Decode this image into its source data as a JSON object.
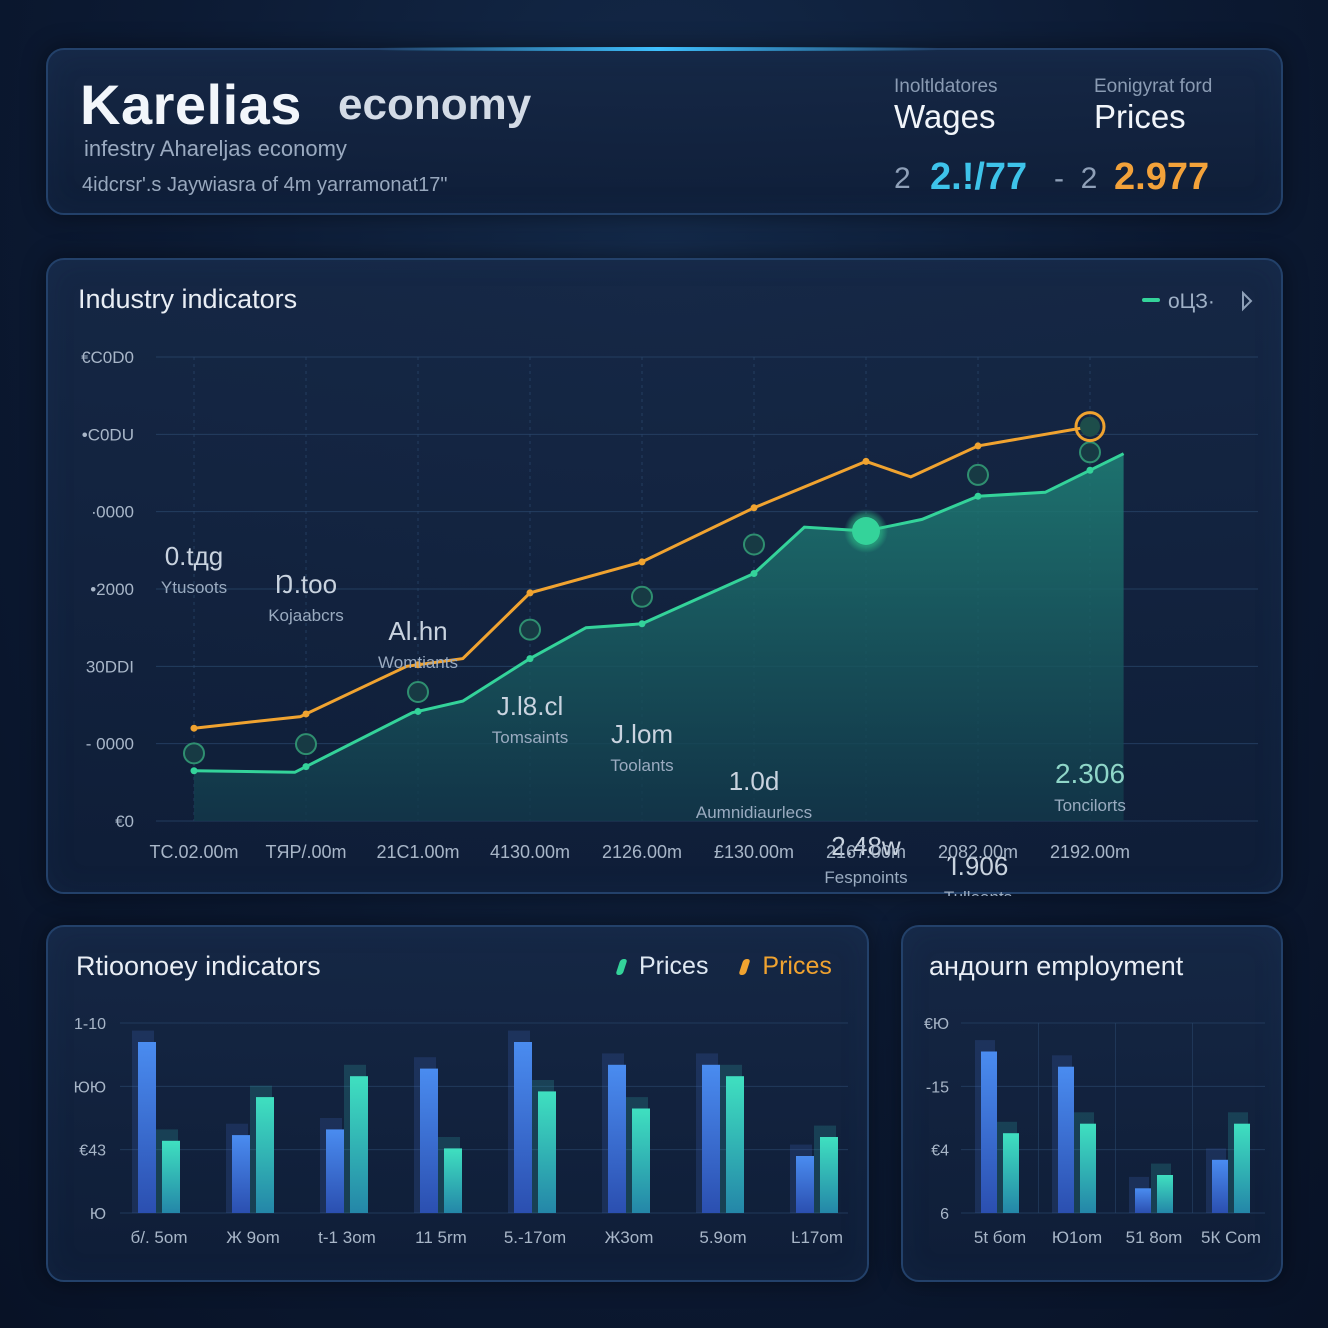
{
  "header": {
    "title_main": "Karelias",
    "title_secondary": "economy",
    "subtitle": "infestry Ahareljas economy",
    "note": "4idcrsr'.s Jaywiasra of 4m yarramonat17\"",
    "kpis": [
      {
        "small": "Inoltldatores",
        "label": "Wages",
        "prefix": "2",
        "value": "2.!/‌77",
        "color": "#3ec3ea"
      },
      {
        "small": "Eonigyrat ford",
        "label": "Prices",
        "prefix": "-  2",
        "value": "2.977",
        "color": "#f3a23a"
      }
    ]
  },
  "main_chart": {
    "title": "Industry indicators",
    "legend_text": "oЦЗ·",
    "colors": {
      "area": "#1f7a72",
      "line_green": "#34d39a",
      "line_orange": "#f0a330"
    },
    "ytick_labels": [
      "€C0D0",
      "•C0DU",
      "∙0000",
      "•2000",
      "30DDI",
      "- 0000",
      "€0"
    ],
    "xtick_labels": [
      "TC.02.00m",
      "TЯP/.00m",
      "21С1.00m",
      "4130.00m",
      "2126.00m",
      "£130.00m",
      "2167.00m",
      "2082.00m",
      "2192.00m"
    ]
  },
  "chart_data": [
    {
      "type": "line",
      "title": "Industry indicators",
      "x": [
        "TC.02.00m",
        "TЯP/.00m",
        "21С1.00m",
        "4130.00m",
        "2126.00m",
        "£130.00m",
        "2167.00m",
        "2082.00m",
        "2192.00m"
      ],
      "ylim": [
        0,
        6
      ],
      "grid": true,
      "legend_position": "top-right",
      "series": [
        {
          "name": "orange",
          "color": "#f0a330",
          "points": [
            [
              0,
              1.2
            ],
            [
              0.95,
              1.35
            ],
            [
              1.9,
              2.0
            ],
            [
              2.4,
              2.1
            ],
            [
              3.0,
              2.95
            ],
            [
              4.0,
              3.35
            ],
            [
              5.0,
              4.05
            ],
            [
              6.0,
              4.65
            ],
            [
              6.4,
              4.45
            ],
            [
              7.0,
              4.85
            ],
            [
              8.0,
              5.1
            ]
          ]
        },
        {
          "name": "green",
          "color": "#34d39a",
          "points": [
            [
              0,
              0.65
            ],
            [
              0.9,
              0.63
            ],
            [
              1.95,
              1.4
            ],
            [
              2.4,
              1.55
            ],
            [
              3.0,
              2.1
            ],
            [
              3.5,
              2.5
            ],
            [
              4.0,
              2.55
            ],
            [
              5.0,
              3.2
            ],
            [
              5.45,
              3.8
            ],
            [
              6.0,
              3.75
            ],
            [
              6.5,
              3.9
            ],
            [
              7.0,
              4.2
            ],
            [
              7.6,
              4.25
            ],
            [
              8.3,
              4.75
            ]
          ]
        }
      ],
      "annotations": [
        {
          "x": 0,
          "value": "0.tдg",
          "label": "Ytusoots"
        },
        {
          "x": 1,
          "value": "Ŋ.too",
          "label": "Kojaabcrs"
        },
        {
          "x": 2,
          "value": "Al.hn",
          "label": "Womtiants"
        },
        {
          "x": 3,
          "value": "J.l8.cl",
          "label": "Tomsaints"
        },
        {
          "x": 4,
          "value": "J.lom",
          "label": "Toolants"
        },
        {
          "x": 5,
          "value": "1.0d",
          "label": "Aumnidiaurlecs"
        },
        {
          "x": 6,
          "value": "2.48w",
          "label": "Fespnoints"
        },
        {
          "x": 7,
          "value": "Ί.906",
          "label": "Tulleants"
        },
        {
          "x": 8,
          "value": "2.306",
          "label": "Toncilorts"
        }
      ]
    },
    {
      "type": "bar",
      "title": "Rtioonoey indicators",
      "categories": [
        "б/. 5om",
        "Ж 9om",
        "t-1 3om",
        "11 5rm",
        "5.-17om",
        "Ж3om",
        "5.9om",
        "Ŀ17om"
      ],
      "ytick_labels": [
        "1-10",
        "ЮЮ",
        "€43",
        "Ю"
      ],
      "ylim": [
        0,
        1
      ],
      "series": [
        {
          "name": "Prices",
          "color": "#3a79e0",
          "values": [
            0.9,
            0.41,
            0.44,
            0.76,
            0.9,
            0.78,
            0.78,
            0.3
          ]
        },
        {
          "name": "Prices",
          "color": "#34d0b0",
          "values": [
            0.38,
            0.61,
            0.72,
            0.34,
            0.64,
            0.55,
            0.72,
            0.4
          ]
        }
      ]
    },
    {
      "type": "bar",
      "title": "андоurn employment",
      "categories": [
        "5t бom",
        "Ю1om",
        "51 8om",
        "5К Com"
      ],
      "ytick_labels": [
        "€Ю",
        "-15",
        "€4",
        "6"
      ],
      "ylim": [
        0,
        1
      ],
      "series": [
        {
          "color": "#3a79e0",
          "values": [
            0.85,
            0.77,
            0.13,
            0.28
          ]
        },
        {
          "color": "#34d0b0",
          "values": [
            0.42,
            0.47,
            0.2,
            0.47
          ]
        }
      ]
    }
  ],
  "bars_left": {
    "title": "Rtioonoey indicators",
    "legend": [
      {
        "label": "Prices",
        "color": "#34d39a"
      },
      {
        "label": "Prices",
        "color": "#f0a330"
      }
    ]
  },
  "bars_right": {
    "title": "андоurn employment"
  }
}
